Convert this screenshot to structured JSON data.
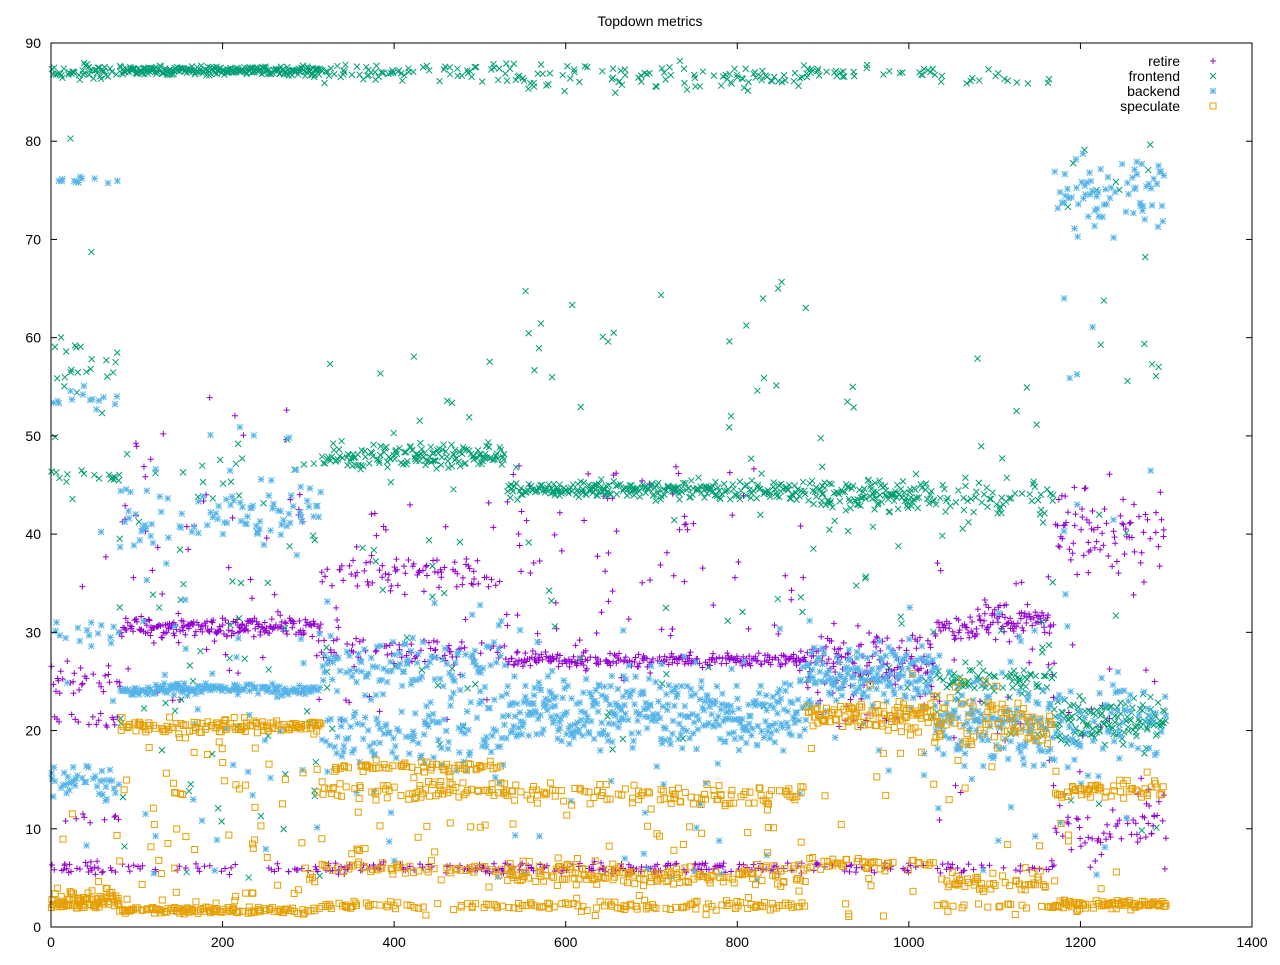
{
  "chart_data": {
    "type": "scatter",
    "title": "Topdown metrics",
    "xlabel": "",
    "ylabel": "",
    "xlim": [
      0,
      1400
    ],
    "ylim": [
      0,
      90
    ],
    "x_ticks": [
      0,
      200,
      400,
      600,
      800,
      1000,
      1200,
      1400
    ],
    "y_ticks": [
      0,
      10,
      20,
      30,
      40,
      50,
      60,
      70,
      80,
      90
    ],
    "grid": false,
    "legend_position": "top-right",
    "series": [
      {
        "name": "retire",
        "marker": "plus",
        "color": "#9400d3",
        "segments": [
          {
            "x_start": 0,
            "x_end": 80,
            "levels": [
              {
                "y": 25,
                "spread": 1.5,
                "weight": 3
              },
              {
                "y": 21,
                "spread": 0.6,
                "weight": 2
              },
              {
                "y": 6,
                "spread": 0.5,
                "weight": 3
              },
              {
                "y": 11,
                "spread": 0.5,
                "weight": 1
              }
            ],
            "scatter": [
              5,
              45
            ],
            "scatter_count": 4
          },
          {
            "x_start": 80,
            "x_end": 315,
            "levels": [
              {
                "y": 30.5,
                "spread": 0.8,
                "weight": 5
              },
              {
                "y": 6,
                "spread": 0.5,
                "weight": 1
              }
            ],
            "scatter": [
              20,
              54
            ],
            "scatter_count": 55
          },
          {
            "x_start": 315,
            "x_end": 530,
            "levels": [
              {
                "y": 36,
                "spread": 1.5,
                "weight": 3
              },
              {
                "y": 28,
                "spread": 1.2,
                "weight": 3
              },
              {
                "y": 6,
                "spread": 0.5,
                "weight": 2
              }
            ],
            "scatter": [
              20,
              44
            ],
            "scatter_count": 40
          },
          {
            "x_start": 530,
            "x_end": 880,
            "levels": [
              {
                "y": 27.2,
                "spread": 0.6,
                "weight": 5
              },
              {
                "y": 6,
                "spread": 0.5,
                "weight": 3
              }
            ],
            "scatter": [
              25,
              47
            ],
            "scatter_count": 90
          },
          {
            "x_start": 880,
            "x_end": 1030,
            "levels": [
              {
                "y": 27,
                "spread": 2.5,
                "weight": 4
              },
              {
                "y": 6,
                "spread": 0.5,
                "weight": 1
              }
            ],
            "scatter": [
              20,
              31
            ],
            "scatter_count": 30
          },
          {
            "x_start": 1030,
            "x_end": 1170,
            "levels": [
              {
                "y": 31,
                "spread": 1.5,
                "weight": 4
              },
              {
                "y": 6,
                "spread": 0.5,
                "weight": 1
              }
            ],
            "scatter": [
              10,
              40
            ],
            "scatter_count": 30
          },
          {
            "x_start": 1170,
            "x_end": 1300,
            "levels": [
              {
                "y": 10,
                "spread": 2.5,
                "weight": 3
              },
              {
                "y": 40,
                "spread": 4,
                "weight": 3
              }
            ],
            "scatter": [
              8,
              45
            ],
            "scatter_count": 25
          }
        ]
      },
      {
        "name": "frontend",
        "marker": "cross",
        "color": "#009e73",
        "segments": [
          {
            "x_start": 0,
            "x_end": 80,
            "levels": [
              {
                "y": 87,
                "spread": 0.6,
                "weight": 3
              },
              {
                "y": 57,
                "spread": 2.5,
                "weight": 2
              },
              {
                "y": 46,
                "spread": 0.8,
                "weight": 1
              }
            ],
            "scatter": [
              40,
              88
            ],
            "scatter_count": 6
          },
          {
            "x_start": 80,
            "x_end": 315,
            "levels": [
              {
                "y": 87.2,
                "spread": 0.4,
                "weight": 1
              }
            ],
            "scatter": [
              5,
              50
            ],
            "scatter_count": 70
          },
          {
            "x_start": 315,
            "x_end": 530,
            "levels": [
              {
                "y": 48,
                "spread": 1.0,
                "weight": 5
              },
              {
                "y": 87,
                "spread": 0.8,
                "weight": 2
              }
            ],
            "scatter": [
              18,
              60
            ],
            "scatter_count": 35
          },
          {
            "x_start": 530,
            "x_end": 880,
            "levels": [
              {
                "y": 44.5,
                "spread": 0.7,
                "weight": 5
              },
              {
                "y": 86.5,
                "spread": 1.2,
                "weight": 2
              }
            ],
            "scatter": [
              18,
              66
            ],
            "scatter_count": 50
          },
          {
            "x_start": 880,
            "x_end": 1030,
            "levels": [
              {
                "y": 44,
                "spread": 1.5,
                "weight": 3
              },
              {
                "y": 87,
                "spread": 0.5,
                "weight": 1
              }
            ],
            "scatter": [
              20,
              55
            ],
            "scatter_count": 30
          },
          {
            "x_start": 1030,
            "x_end": 1170,
            "levels": [
              {
                "y": 43.5,
                "spread": 1.5,
                "weight": 2
              },
              {
                "y": 25,
                "spread": 1.0,
                "weight": 3
              },
              {
                "y": 86.5,
                "spread": 0.6,
                "weight": 1
              }
            ],
            "scatter": [
              18,
              60
            ],
            "scatter_count": 30
          },
          {
            "x_start": 1170,
            "x_end": 1300,
            "levels": [
              {
                "y": 21,
                "spread": 2,
                "weight": 3
              }
            ],
            "scatter": [
              8,
              80
            ],
            "scatter_count": 25
          }
        ]
      },
      {
        "name": "backend",
        "marker": "star",
        "color": "#56b4e9",
        "segments": [
          {
            "x_start": 0,
            "x_end": 80,
            "levels": [
              {
                "y": 15,
                "spread": 1.5,
                "weight": 3
              },
              {
                "y": 54,
                "spread": 1.0,
                "weight": 1
              },
              {
                "y": 30,
                "spread": 1.0,
                "weight": 1
              },
              {
                "y": 76,
                "spread": 0.4,
                "weight": 1
              }
            ],
            "scatter": [
              8,
              48
            ],
            "scatter_count": 6
          },
          {
            "x_start": 80,
            "x_end": 315,
            "levels": [
              {
                "y": 24.2,
                "spread": 0.5,
                "weight": 5
              },
              {
                "y": 42,
                "spread": 3,
                "weight": 2
              }
            ],
            "scatter": [
              5,
              51
            ],
            "scatter_count": 50
          },
          {
            "x_start": 315,
            "x_end": 530,
            "levels": [
              {
                "y": 20,
                "spread": 3.5,
                "weight": 4
              },
              {
                "y": 27,
                "spread": 2,
                "weight": 2
              }
            ],
            "scatter": [
              5,
              36
            ],
            "scatter_count": 25
          },
          {
            "x_start": 530,
            "x_end": 880,
            "levels": [
              {
                "y": 22,
                "spread": 3.5,
                "weight": 6
              }
            ],
            "scatter": [
              4,
              32
            ],
            "scatter_count": 40
          },
          {
            "x_start": 880,
            "x_end": 1030,
            "levels": [
              {
                "y": 25.5,
                "spread": 2.5,
                "weight": 5
              }
            ],
            "scatter": [
              15,
              34
            ],
            "scatter_count": 15
          },
          {
            "x_start": 1030,
            "x_end": 1170,
            "levels": [
              {
                "y": 20.5,
                "spread": 3,
                "weight": 5
              }
            ],
            "scatter": [
              5,
              32
            ],
            "scatter_count": 20
          },
          {
            "x_start": 1170,
            "x_end": 1300,
            "levels": [
              {
                "y": 75,
                "spread": 3.5,
                "weight": 3
              },
              {
                "y": 21,
                "spread": 4,
                "weight": 2
              }
            ],
            "scatter": [
              5,
              66
            ],
            "scatter_count": 20
          }
        ]
      },
      {
        "name": "speculate",
        "marker": "square",
        "color": "#e69f00",
        "segments": [
          {
            "x_start": 0,
            "x_end": 80,
            "levels": [
              {
                "y": 3,
                "spread": 0.8,
                "weight": 4
              },
              {
                "y": 2.2,
                "spread": 0.3,
                "weight": 2
              }
            ],
            "scatter": [
              1,
              12
            ],
            "scatter_count": 5
          },
          {
            "x_start": 80,
            "x_end": 315,
            "levels": [
              {
                "y": 20.5,
                "spread": 0.6,
                "weight": 3
              },
              {
                "y": 1.7,
                "spread": 0.3,
                "weight": 3
              }
            ],
            "scatter": [
              1,
              21
            ],
            "scatter_count": 70
          },
          {
            "x_start": 315,
            "x_end": 530,
            "levels": [
              {
                "y": 14,
                "spread": 0.8,
                "weight": 2
              },
              {
                "y": 16.3,
                "spread": 0.4,
                "weight": 2
              },
              {
                "y": 6,
                "spread": 0.5,
                "weight": 2
              },
              {
                "y": 2.2,
                "spread": 0.3,
                "weight": 2
              }
            ],
            "scatter": [
              1,
              17
            ],
            "scatter_count": 40
          },
          {
            "x_start": 530,
            "x_end": 880,
            "levels": [
              {
                "y": 5.2,
                "spread": 0.9,
                "weight": 4
              },
              {
                "y": 2.2,
                "spread": 0.4,
                "weight": 2
              },
              {
                "y": 13.5,
                "spread": 1,
                "weight": 2
              }
            ],
            "scatter": [
              1,
              15
            ],
            "scatter_count": 50
          },
          {
            "x_start": 880,
            "x_end": 1030,
            "levels": [
              {
                "y": 21.5,
                "spread": 1.2,
                "weight": 4
              },
              {
                "y": 6.5,
                "spread": 0.6,
                "weight": 2
              }
            ],
            "scatter": [
              1,
              26
            ],
            "scatter_count": 20
          },
          {
            "x_start": 1030,
            "x_end": 1170,
            "levels": [
              {
                "y": 21,
                "spread": 2.5,
                "weight": 4
              },
              {
                "y": 4.5,
                "spread": 0.8,
                "weight": 2
              },
              {
                "y": 2.2,
                "spread": 0.3,
                "weight": 1
              }
            ],
            "scatter": [
              1,
              26
            ],
            "scatter_count": 25
          },
          {
            "x_start": 1170,
            "x_end": 1300,
            "levels": [
              {
                "y": 2.3,
                "spread": 0.4,
                "weight": 3
              },
              {
                "y": 14,
                "spread": 0.8,
                "weight": 2
              }
            ],
            "scatter": [
              1,
              16
            ],
            "scatter_count": 10
          }
        ]
      }
    ]
  }
}
